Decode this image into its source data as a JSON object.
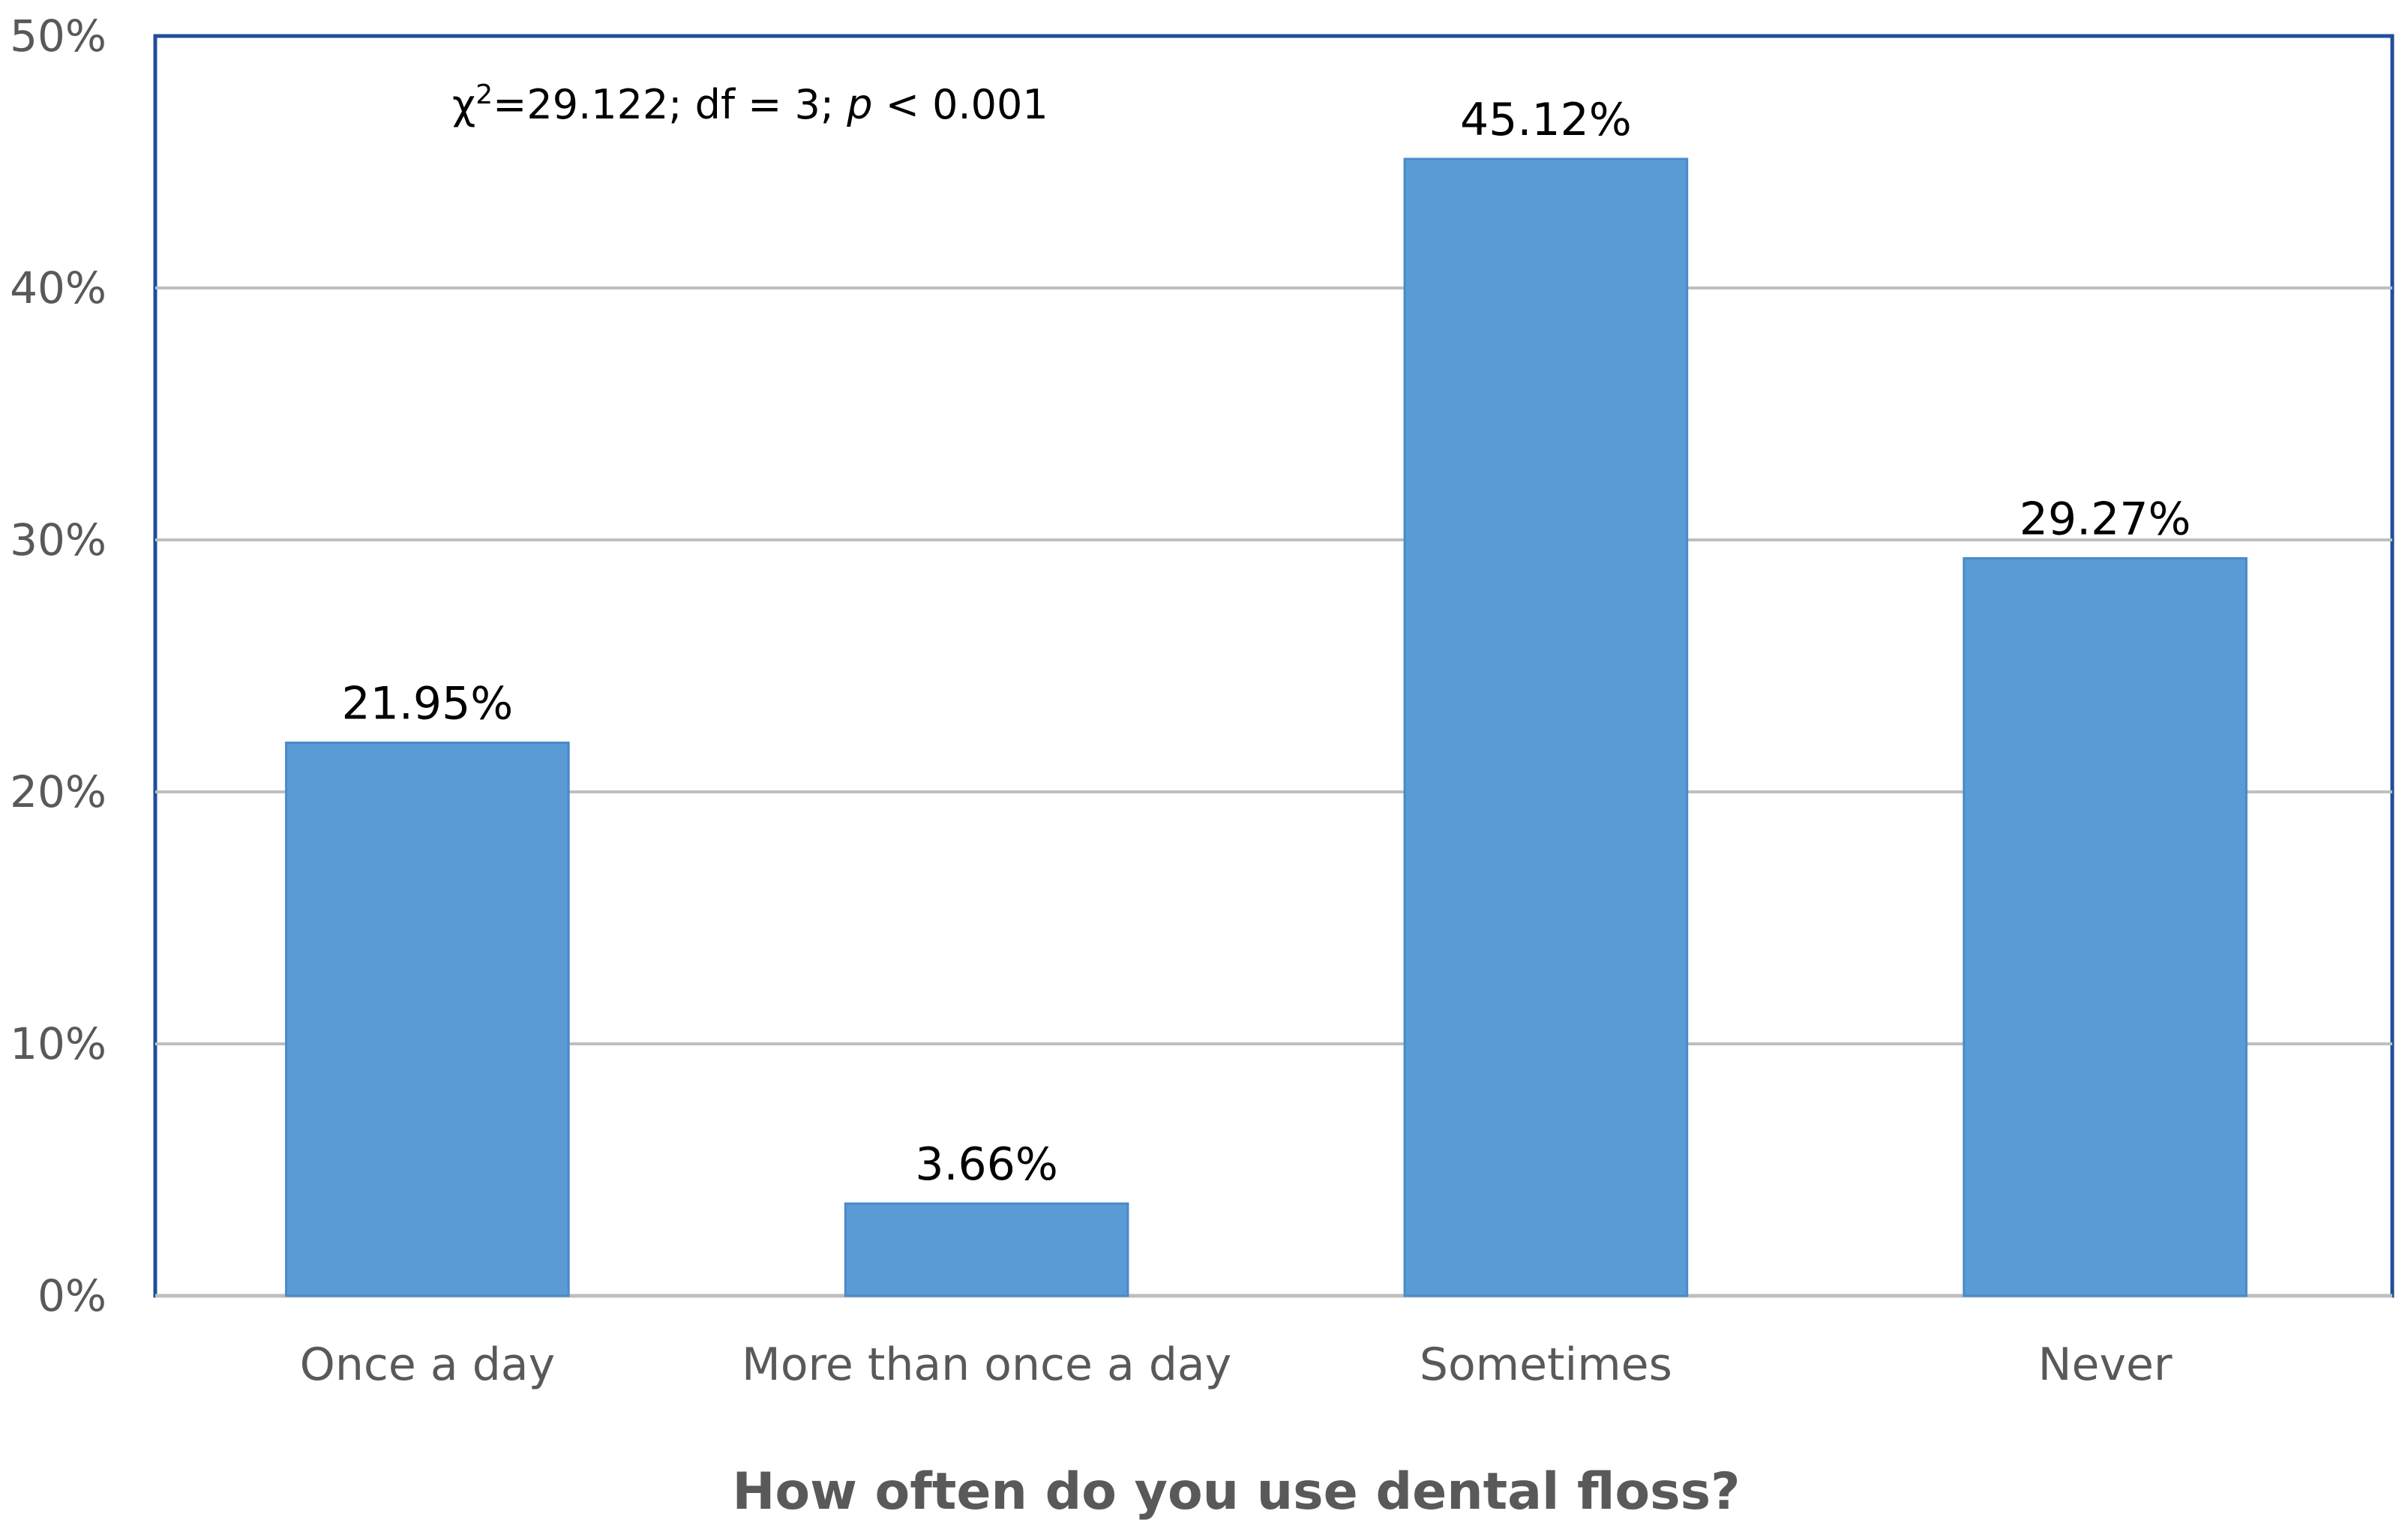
{
  "chart_data": {
    "type": "bar",
    "title": "",
    "xlabel": "How often do you use dental floss?",
    "ylabel": "",
    "categories": [
      "Once a day",
      "More than once a day",
      "Sometimes",
      "Never"
    ],
    "values": [
      21.95,
      3.66,
      45.12,
      29.27
    ],
    "value_labels": [
      "21.95%",
      "3.66%",
      "45.12%",
      "29.27%"
    ],
    "ylim": [
      0,
      50
    ],
    "yticks": [
      0,
      10,
      20,
      30,
      40,
      50
    ],
    "ytick_labels": [
      "0%",
      "10%",
      "20%",
      "30%",
      "40%",
      "50%"
    ],
    "grid": true,
    "bar_color": "#5B9BD5",
    "annotation": {
      "chi_symbol": "χ",
      "superscript": "2",
      "stat_text": "=29.122; df = 3; ",
      "p_symbol": "p",
      "p_text": " < 0.001"
    }
  }
}
